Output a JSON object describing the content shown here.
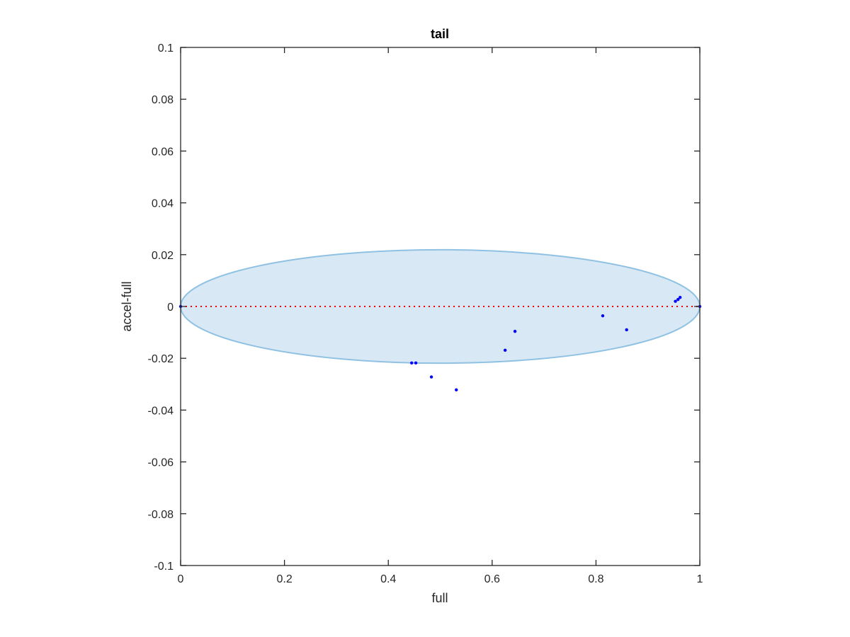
{
  "chart_data": {
    "type": "scatter",
    "title": "tail",
    "xlabel": "full",
    "ylabel": "accel-full",
    "xlim": [
      0,
      1
    ],
    "ylim": [
      -0.1,
      0.1
    ],
    "x_ticks": [
      0,
      0.2,
      0.4,
      0.6,
      0.8,
      1
    ],
    "x_tick_labels": [
      "0",
      "0.2",
      "0.4",
      "0.6",
      "0.8",
      "1"
    ],
    "y_ticks": [
      -0.1,
      -0.08,
      -0.06,
      -0.04,
      -0.02,
      0,
      0.02,
      0.04,
      0.06,
      0.08,
      0.1
    ],
    "y_tick_labels": [
      "-0.1",
      "-0.08",
      "-0.06",
      "-0.04",
      "-0.02",
      "0",
      "0.02",
      "0.04",
      "0.06",
      "0.08",
      "0.1"
    ],
    "grid": false,
    "box": true,
    "points": [
      {
        "x": 0.0,
        "y": 0.0
      },
      {
        "x": 0.445,
        "y": -0.0218
      },
      {
        "x": 0.453,
        "y": -0.0218
      },
      {
        "x": 0.483,
        "y": -0.0272
      },
      {
        "x": 0.531,
        "y": -0.0322
      },
      {
        "x": 0.625,
        "y": -0.0169
      },
      {
        "x": 0.644,
        "y": -0.0096
      },
      {
        "x": 0.813,
        "y": -0.0036
      },
      {
        "x": 0.859,
        "y": -0.009
      },
      {
        "x": 0.953,
        "y": 0.002
      },
      {
        "x": 0.958,
        "y": 0.0027
      },
      {
        "x": 0.962,
        "y": 0.0035
      },
      {
        "x": 1.0,
        "y": 0.0
      }
    ],
    "reference_line": {
      "y": 0,
      "x_range": [
        0,
        1
      ],
      "style": "dotted"
    },
    "ellipse": {
      "center_x": 0.5,
      "center_y": 0.0,
      "radius_x": 0.5,
      "radius_y": 0.0219
    },
    "colors": {
      "points": "#0000ff",
      "reference_line": "#ff0000",
      "ellipse_fill": "#d9e8f5",
      "ellipse_edge": "#8fc1e3",
      "axes": "#262626"
    }
  }
}
